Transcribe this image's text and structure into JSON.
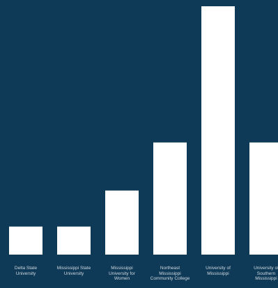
{
  "colors": {
    "background": "#0f3a57",
    "bar": "#ffffff",
    "label": "#cfd9e1"
  },
  "chart_data": {
    "type": "bar",
    "title": "",
    "xlabel": "",
    "ylabel": "",
    "grid": false,
    "ylim": [
      0,
      3.1
    ],
    "categories": [
      "Delta State University",
      "Mississippi State University",
      "Mississippi University for Women",
      "Northeast Mississippi Community College",
      "University of Mississippi",
      "University of Southern Mississippi"
    ],
    "values": [
      0.35,
      0.35,
      0.8,
      1.4,
      3.1,
      1.4
    ]
  }
}
